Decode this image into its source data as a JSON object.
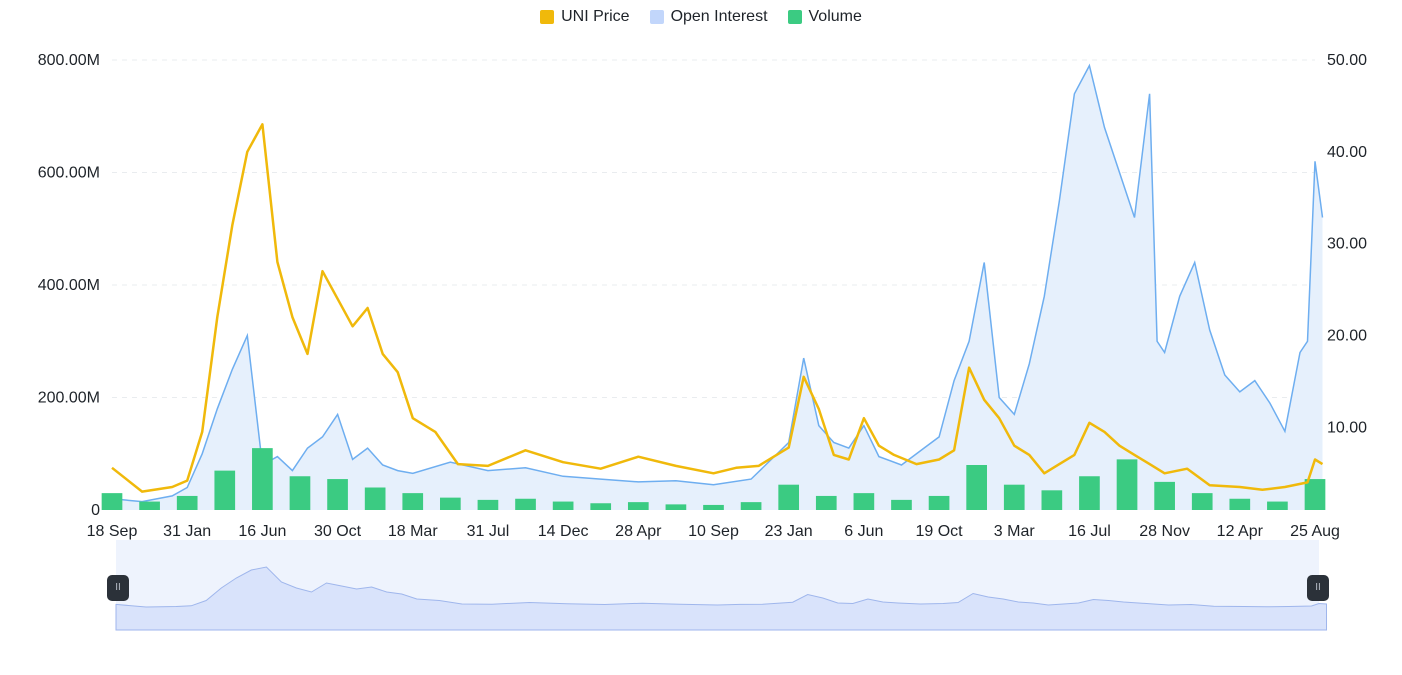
{
  "legend": {
    "items": [
      {
        "label": "UNI Price",
        "color": "#f0b90b"
      },
      {
        "label": "Open Interest",
        "color": "#c2d6fb"
      },
      {
        "label": "Volume",
        "color": "#3bcb82"
      }
    ]
  },
  "colors": {
    "price": "#f0b90b",
    "open_interest_line": "#6eaef0",
    "open_interest_fill": "#e6f0fc",
    "volume": "#3bcb82",
    "grid": "#e9ecef",
    "navigator_fill": "#d9e3fb",
    "navigator_line": "#9fb6ec",
    "navigator_bg": "#eef3fd",
    "handle": "#2b3139"
  },
  "chart_data": {
    "type": "line",
    "title": "",
    "xlabel": "",
    "ylabel_left": "",
    "ylabel_right": "",
    "x_ticks": [
      "18 Sep",
      "31 Jan",
      "16 Jun",
      "30 Oct",
      "18 Mar",
      "31 Jul",
      "14 Dec",
      "28 Apr",
      "10 Sep",
      "23 Jan",
      "6 Jun",
      "19 Oct",
      "3 Mar",
      "16 Jul",
      "28 Nov",
      "12 Apr",
      "25 Aug"
    ],
    "y_left_ticks": [
      "0",
      "200.00M",
      "400.00M",
      "600.00M",
      "800.00M"
    ],
    "y_left_range": [
      0,
      800000000
    ],
    "y_right_ticks": [
      "10.00",
      "20.00",
      "30.00",
      "40.00",
      "50.00"
    ],
    "y_right_range": [
      1,
      50
    ],
    "grid": true,
    "legend_position": "top-center",
    "x_index_range": [
      0,
      16
    ],
    "series": [
      {
        "name": "UNI Price",
        "axis": "right",
        "kind": "line",
        "x": [
          0,
          0.4,
          0.8,
          1,
          1.2,
          1.4,
          1.6,
          1.8,
          2.0,
          2.2,
          2.4,
          2.6,
          2.8,
          3.0,
          3.2,
          3.4,
          3.6,
          3.8,
          4.0,
          4.3,
          4.6,
          5.0,
          5.5,
          6.0,
          6.5,
          7.0,
          7.5,
          8.0,
          8.3,
          8.6,
          9.0,
          9.2,
          9.4,
          9.6,
          9.8,
          10.0,
          10.2,
          10.4,
          10.7,
          11.0,
          11.2,
          11.4,
          11.6,
          11.8,
          12.0,
          12.2,
          12.4,
          12.6,
          12.8,
          13.0,
          13.2,
          13.4,
          13.6,
          13.8,
          14.0,
          14.3,
          14.6,
          15.0,
          15.3,
          15.6,
          15.9,
          16.0,
          16.1
        ],
        "y": [
          5.6,
          3.0,
          3.5,
          4.2,
          9.5,
          22,
          32,
          40,
          43,
          28,
          22,
          18,
          27,
          24,
          21,
          23,
          18,
          16,
          11,
          9.5,
          6.0,
          5.8,
          7.5,
          6.2,
          5.5,
          6.8,
          5.8,
          5.0,
          5.6,
          5.8,
          7.8,
          15.5,
          12.0,
          7.0,
          6.5,
          11.0,
          8.0,
          7.0,
          6.0,
          6.5,
          7.5,
          16.5,
          13.0,
          11.0,
          8.0,
          7.0,
          5.0,
          6.0,
          7.0,
          10.5,
          9.5,
          8.0,
          7.0,
          6.0,
          5.0,
          5.5,
          3.7,
          3.5,
          3.2,
          3.5,
          4.0,
          6.5,
          6.0
        ]
      },
      {
        "name": "Open Interest",
        "axis": "left",
        "kind": "area",
        "x": [
          0,
          0.4,
          0.8,
          1,
          1.2,
          1.4,
          1.6,
          1.8,
          2.0,
          2.2,
          2.4,
          2.6,
          2.8,
          3.0,
          3.2,
          3.4,
          3.6,
          3.8,
          4.0,
          4.5,
          5.0,
          5.5,
          6.0,
          6.5,
          7.0,
          7.5,
          8.0,
          8.5,
          9.0,
          9.2,
          9.4,
          9.6,
          9.8,
          10.0,
          10.2,
          10.5,
          10.8,
          11.0,
          11.2,
          11.4,
          11.6,
          11.8,
          12.0,
          12.2,
          12.4,
          12.6,
          12.8,
          13.0,
          13.2,
          13.4,
          13.6,
          13.8,
          13.9,
          14.0,
          14.2,
          14.4,
          14.6,
          14.8,
          15.0,
          15.2,
          15.4,
          15.6,
          15.8,
          15.9,
          16.0,
          16.1
        ],
        "y": [
          20000000,
          15000000,
          25000000,
          40000000,
          100000000,
          180000000,
          250000000,
          310000000,
          80000000,
          95000000,
          70000000,
          110000000,
          130000000,
          170000000,
          90000000,
          110000000,
          80000000,
          70000000,
          65000000,
          85000000,
          70000000,
          75000000,
          60000000,
          55000000,
          50000000,
          52000000,
          45000000,
          55000000,
          120000000,
          270000000,
          150000000,
          120000000,
          110000000,
          150000000,
          95000000,
          80000000,
          110000000,
          130000000,
          230000000,
          300000000,
          440000000,
          200000000,
          170000000,
          260000000,
          380000000,
          550000000,
          740000000,
          790000000,
          680000000,
          600000000,
          520000000,
          740000000,
          300000000,
          280000000,
          380000000,
          440000000,
          320000000,
          240000000,
          210000000,
          230000000,
          190000000,
          140000000,
          280000000,
          300000000,
          620000000,
          520000000
        ]
      },
      {
        "name": "Volume",
        "axis": "left",
        "kind": "bars",
        "x": [
          0,
          0.5,
          1.0,
          1.5,
          2.0,
          2.5,
          3.0,
          3.5,
          4.0,
          4.5,
          5.0,
          5.5,
          6.0,
          6.5,
          7.0,
          7.5,
          8.0,
          8.5,
          9.0,
          9.5,
          10.0,
          10.5,
          11.0,
          11.5,
          12.0,
          12.5,
          13.0,
          13.5,
          14.0,
          14.5,
          15.0,
          15.5,
          16.0
        ],
        "y": [
          30000000,
          15000000,
          25000000,
          70000000,
          110000000,
          60000000,
          55000000,
          40000000,
          30000000,
          22000000,
          18000000,
          20000000,
          15000000,
          12000000,
          14000000,
          10000000,
          9000000,
          14000000,
          45000000,
          25000000,
          30000000,
          18000000,
          25000000,
          80000000,
          45000000,
          35000000,
          60000000,
          90000000,
          50000000,
          30000000,
          20000000,
          15000000,
          55000000
        ]
      }
    ]
  },
  "navigator": {
    "left_handle_icon": "pause-icon",
    "right_handle_icon": "pause-icon",
    "handle_glyph": "II"
  }
}
